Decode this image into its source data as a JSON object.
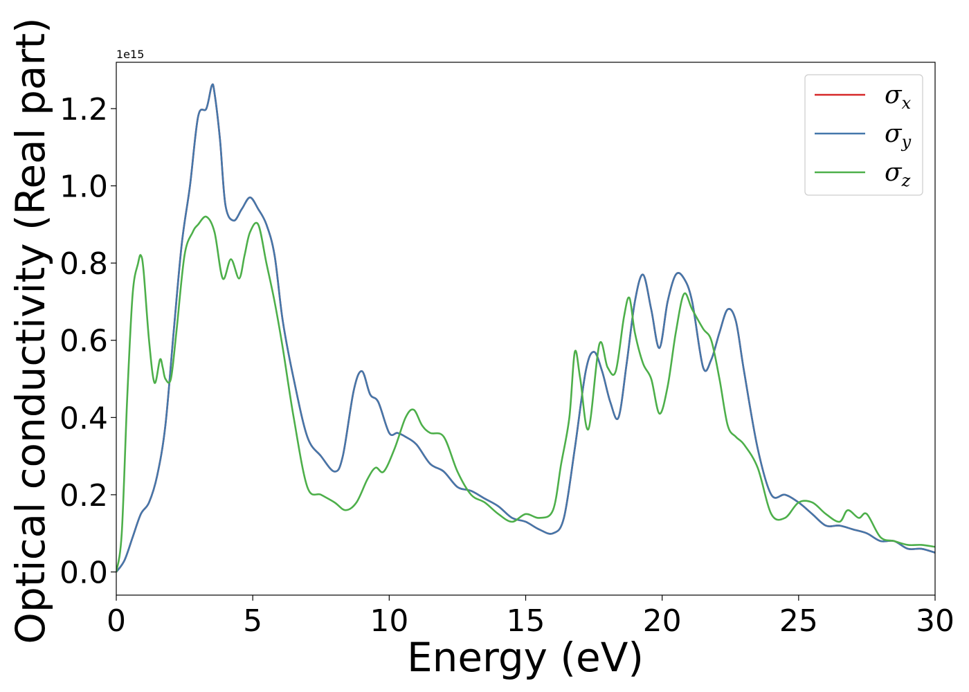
{
  "chart_data": {
    "type": "line",
    "xlabel": "Energy (eV)",
    "ylabel": "Optical conductivity (Real part)",
    "y_offset_label": "1e15",
    "xlim": [
      0,
      30
    ],
    "ylim": [
      -0.06,
      1.32
    ],
    "xticks": [
      0,
      5,
      10,
      15,
      20,
      25,
      30
    ],
    "xtick_labels": [
      "0",
      "5",
      "10",
      "15",
      "20",
      "25",
      "30"
    ],
    "yticks": [
      0.0,
      0.2,
      0.4,
      0.6,
      0.8,
      1.0,
      1.2
    ],
    "ytick_labels": [
      "0.0",
      "0.2",
      "0.4",
      "0.6",
      "0.8",
      "1.0",
      "1.2"
    ],
    "grid": false,
    "legend_position": "top-right",
    "series": [
      {
        "name": "σ",
        "subscript": "x",
        "color": "#d62728",
        "x": [
          0,
          0.3,
          0.6,
          0.9,
          1.2,
          1.5,
          1.8,
          2.1,
          2.4,
          2.7,
          3.0,
          3.3,
          3.5,
          3.6,
          3.8,
          4.0,
          4.3,
          4.6,
          4.9,
          5.2,
          5.5,
          5.8,
          6.1,
          6.5,
          7.0,
          7.5,
          8.0,
          8.3,
          8.7,
          9.0,
          9.3,
          9.6,
          10.0,
          10.3,
          10.6,
          11.0,
          11.5,
          12.0,
          12.5,
          13.0,
          13.5,
          14.0,
          14.5,
          15.0,
          15.5,
          16.0,
          16.4,
          16.8,
          17.2,
          17.5,
          17.8,
          18.1,
          18.4,
          18.7,
          19.0,
          19.3,
          19.6,
          19.9,
          20.2,
          20.5,
          20.8,
          21.1,
          21.5,
          21.8,
          22.1,
          22.4,
          22.7,
          23.0,
          23.5,
          24.0,
          24.5,
          25.0,
          25.5,
          26.0,
          26.5,
          27.0,
          27.5,
          28.0,
          28.5,
          29.0,
          29.5,
          30.0
        ],
        "y": [
          0.0,
          0.03,
          0.09,
          0.15,
          0.18,
          0.25,
          0.38,
          0.62,
          0.85,
          1.0,
          1.18,
          1.2,
          1.26,
          1.24,
          1.12,
          0.95,
          0.91,
          0.94,
          0.97,
          0.94,
          0.9,
          0.82,
          0.65,
          0.5,
          0.35,
          0.3,
          0.26,
          0.3,
          0.47,
          0.52,
          0.46,
          0.44,
          0.36,
          0.36,
          0.35,
          0.33,
          0.28,
          0.26,
          0.22,
          0.21,
          0.19,
          0.17,
          0.14,
          0.13,
          0.11,
          0.1,
          0.14,
          0.32,
          0.52,
          0.57,
          0.52,
          0.44,
          0.4,
          0.54,
          0.7,
          0.77,
          0.68,
          0.58,
          0.7,
          0.77,
          0.76,
          0.7,
          0.53,
          0.55,
          0.62,
          0.68,
          0.65,
          0.52,
          0.32,
          0.2,
          0.2,
          0.18,
          0.15,
          0.12,
          0.12,
          0.11,
          0.1,
          0.08,
          0.08,
          0.06,
          0.06,
          0.05
        ]
      },
      {
        "name": "σ",
        "subscript": "y",
        "color": "#4477aa",
        "x": [
          0,
          0.3,
          0.6,
          0.9,
          1.2,
          1.5,
          1.8,
          2.1,
          2.4,
          2.7,
          3.0,
          3.3,
          3.5,
          3.6,
          3.8,
          4.0,
          4.3,
          4.6,
          4.9,
          5.2,
          5.5,
          5.8,
          6.1,
          6.5,
          7.0,
          7.5,
          8.0,
          8.3,
          8.7,
          9.0,
          9.3,
          9.6,
          10.0,
          10.3,
          10.6,
          11.0,
          11.5,
          12.0,
          12.5,
          13.0,
          13.5,
          14.0,
          14.5,
          15.0,
          15.5,
          16.0,
          16.4,
          16.8,
          17.2,
          17.5,
          17.8,
          18.1,
          18.4,
          18.7,
          19.0,
          19.3,
          19.6,
          19.9,
          20.2,
          20.5,
          20.8,
          21.1,
          21.5,
          21.8,
          22.1,
          22.4,
          22.7,
          23.0,
          23.5,
          24.0,
          24.5,
          25.0,
          25.5,
          26.0,
          26.5,
          27.0,
          27.5,
          28.0,
          28.5,
          29.0,
          29.5,
          30.0
        ],
        "y": [
          0.0,
          0.03,
          0.09,
          0.15,
          0.18,
          0.25,
          0.38,
          0.62,
          0.85,
          1.0,
          1.18,
          1.2,
          1.26,
          1.24,
          1.12,
          0.95,
          0.91,
          0.94,
          0.97,
          0.94,
          0.9,
          0.82,
          0.65,
          0.5,
          0.35,
          0.3,
          0.26,
          0.3,
          0.47,
          0.52,
          0.46,
          0.44,
          0.36,
          0.36,
          0.35,
          0.33,
          0.28,
          0.26,
          0.22,
          0.21,
          0.19,
          0.17,
          0.14,
          0.13,
          0.11,
          0.1,
          0.14,
          0.32,
          0.52,
          0.57,
          0.52,
          0.44,
          0.4,
          0.54,
          0.7,
          0.77,
          0.68,
          0.58,
          0.7,
          0.77,
          0.76,
          0.7,
          0.53,
          0.55,
          0.62,
          0.68,
          0.65,
          0.52,
          0.32,
          0.2,
          0.2,
          0.18,
          0.15,
          0.12,
          0.12,
          0.11,
          0.1,
          0.08,
          0.08,
          0.06,
          0.06,
          0.05
        ]
      },
      {
        "name": "σ",
        "subscript": "z",
        "color": "#4daf4a",
        "x": [
          0,
          0.2,
          0.4,
          0.6,
          0.8,
          0.9,
          1.0,
          1.2,
          1.4,
          1.6,
          1.7,
          1.8,
          2.0,
          2.2,
          2.5,
          2.8,
          3.0,
          3.3,
          3.6,
          3.9,
          4.2,
          4.5,
          4.7,
          4.9,
          5.2,
          5.5,
          5.8,
          6.1,
          6.5,
          7.0,
          7.5,
          8.0,
          8.4,
          8.8,
          9.2,
          9.5,
          9.8,
          10.2,
          10.6,
          10.9,
          11.2,
          11.5,
          12.0,
          12.5,
          13.0,
          13.5,
          14.0,
          14.5,
          15.0,
          15.5,
          16.0,
          16.3,
          16.6,
          16.8,
          17.0,
          17.3,
          17.7,
          18.0,
          18.3,
          18.6,
          18.8,
          19.0,
          19.3,
          19.6,
          19.9,
          20.2,
          20.5,
          20.8,
          21.1,
          21.5,
          21.8,
          22.1,
          22.4,
          22.7,
          23.0,
          23.5,
          24.0,
          24.5,
          25.0,
          25.5,
          26.0,
          26.5,
          26.8,
          27.2,
          27.5,
          28.0,
          28.5,
          29.0,
          29.5,
          30.0
        ],
        "y": [
          0.0,
          0.1,
          0.45,
          0.72,
          0.8,
          0.82,
          0.78,
          0.6,
          0.49,
          0.55,
          0.53,
          0.5,
          0.5,
          0.62,
          0.82,
          0.88,
          0.9,
          0.92,
          0.88,
          0.76,
          0.81,
          0.76,
          0.82,
          0.88,
          0.9,
          0.8,
          0.7,
          0.58,
          0.4,
          0.22,
          0.2,
          0.18,
          0.16,
          0.18,
          0.24,
          0.27,
          0.26,
          0.32,
          0.4,
          0.42,
          0.38,
          0.36,
          0.35,
          0.26,
          0.2,
          0.18,
          0.15,
          0.13,
          0.15,
          0.14,
          0.16,
          0.28,
          0.4,
          0.57,
          0.5,
          0.37,
          0.59,
          0.53,
          0.52,
          0.66,
          0.71,
          0.62,
          0.54,
          0.5,
          0.41,
          0.48,
          0.62,
          0.72,
          0.68,
          0.63,
          0.6,
          0.5,
          0.38,
          0.35,
          0.33,
          0.27,
          0.15,
          0.14,
          0.18,
          0.18,
          0.15,
          0.13,
          0.16,
          0.14,
          0.15,
          0.09,
          0.08,
          0.07,
          0.07,
          0.065
        ]
      }
    ]
  }
}
